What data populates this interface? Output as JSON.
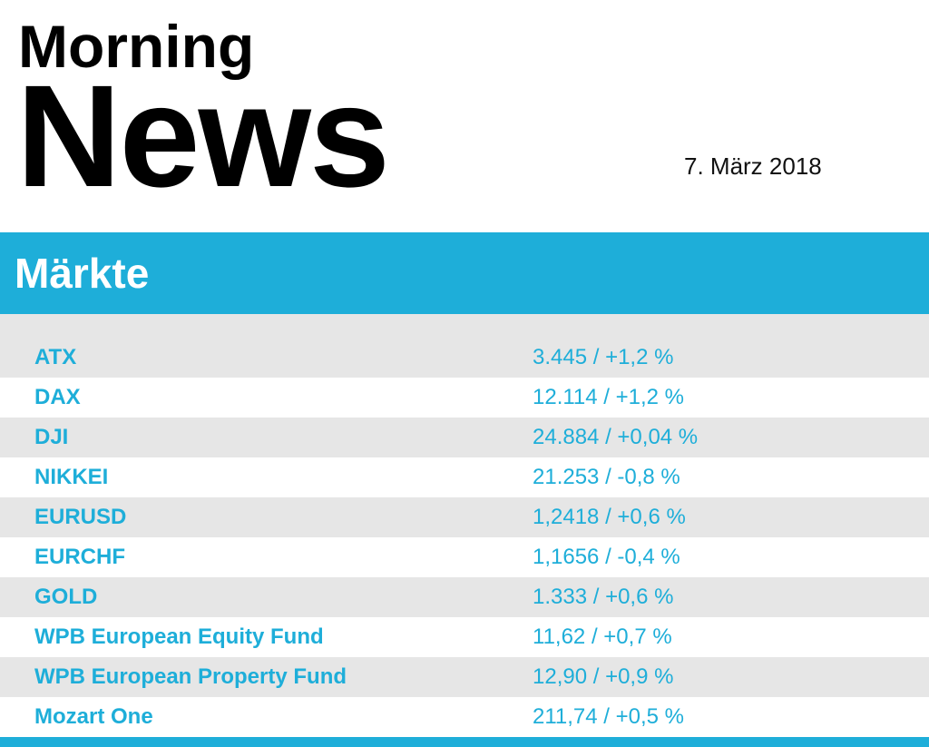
{
  "header": {
    "title_line1": "Morning",
    "title_line2": "News",
    "date": "7. März 2018"
  },
  "section": {
    "title": "Märkte"
  },
  "table": {
    "rows": [
      [
        "ATX",
        "3.445 / +1,2 %"
      ],
      [
        "DAX",
        "12.114 / +1,2 %"
      ],
      [
        "DJI",
        "24.884 / +0,04 %"
      ],
      [
        "NIKKEI",
        "21.253 / -0,8 %"
      ],
      [
        "EURUSD",
        "1,2418 / +0,6 %"
      ],
      [
        "EURCHF",
        "1,1656 / -0,4 %"
      ],
      [
        "GOLD",
        "1.333 / +0,6 %"
      ],
      [
        "WPB European Equity Fund",
        "11,62 / +0,7 %"
      ],
      [
        "WPB European Property Fund",
        "12,90 / +0,9 %"
      ],
      [
        "Mozart One",
        "211,74 / +0,5 %"
      ]
    ]
  }
}
